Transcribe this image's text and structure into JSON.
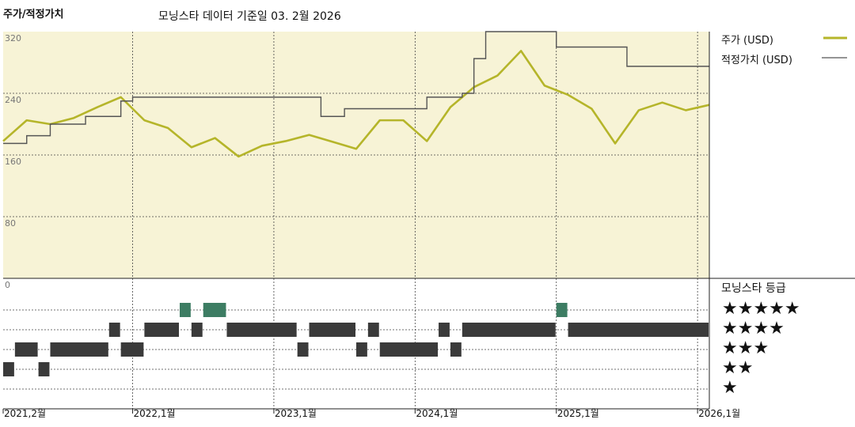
{
  "header": {
    "title": "주가/적정가치",
    "subtitle": "모닝스타 데이터 기준일 03. 2월 2026"
  },
  "legend": {
    "price": "주가 (USD)",
    "fair_value": "적정가치 (USD)",
    "rating_title": "모닝스타 등급",
    "star_rows": [
      "★★★★★",
      "★★★★",
      "★★★",
      "★★",
      "★"
    ]
  },
  "colors": {
    "plot_bg": "#f7f3d6",
    "price": "#b5b52a",
    "fair_value": "#555555",
    "rating_high": "#3d7d63",
    "rating": "#3a3a3a",
    "grid": "#444444"
  },
  "chart_data": [
    {
      "type": "line",
      "title": "주가/적정가치",
      "x_tick_labels": [
        "2021,2월",
        "2022,1월",
        "2023,1월",
        "2024,1월",
        "2025,1월",
        "2026,1월"
      ],
      "x_range": [
        "2021-02",
        "2026-02"
      ],
      "y_ticks": [
        0,
        80,
        160,
        240,
        320
      ],
      "ylim": [
        0,
        320
      ],
      "grid": true,
      "legend_position": "right",
      "series": [
        {
          "name": "주가 (USD)",
          "x": [
            "2021-02",
            "2021-04",
            "2021-06",
            "2021-08",
            "2021-10",
            "2021-12",
            "2022-02",
            "2022-04",
            "2022-06",
            "2022-08",
            "2022-10",
            "2022-12",
            "2023-02",
            "2023-04",
            "2023-06",
            "2023-08",
            "2023-10",
            "2023-12",
            "2024-02",
            "2024-04",
            "2024-06",
            "2024-08",
            "2024-10",
            "2024-12",
            "2025-02",
            "2025-04",
            "2025-06",
            "2025-08",
            "2025-10",
            "2025-12",
            "2026-02"
          ],
          "values": [
            178,
            205,
            200,
            208,
            222,
            235,
            205,
            195,
            170,
            182,
            158,
            172,
            178,
            186,
            177,
            168,
            205,
            205,
            178,
            222,
            248,
            263,
            295,
            250,
            238,
            220,
            175,
            218,
            228,
            218,
            225
          ]
        },
        {
          "name": "적정가치 (USD)",
          "x": [
            "2021-02",
            "2021-04",
            "2021-06",
            "2021-09",
            "2021-12",
            "2022-01",
            "2022-03",
            "2023-01",
            "2023-05",
            "2023-07",
            "2024-02",
            "2024-05",
            "2024-06",
            "2024-07",
            "2024-09",
            "2025-01",
            "2025-05",
            "2025-07",
            "2025-12",
            "2026-02"
          ],
          "values": [
            175,
            185,
            200,
            210,
            230,
            235,
            235,
            235,
            210,
            220,
            235,
            240,
            285,
            320,
            320,
            300,
            300,
            275,
            275,
            275
          ]
        }
      ]
    },
    {
      "type": "rating_timeline",
      "title": "모닝스타 등급",
      "levels": [
        5,
        4,
        3,
        2,
        1
      ],
      "periods": [
        {
          "start": "2021-02",
          "end": "2021-03",
          "stars": 2
        },
        {
          "start": "2021-03",
          "end": "2021-05",
          "stars": 3
        },
        {
          "start": "2021-05",
          "end": "2021-06",
          "stars": 2
        },
        {
          "start": "2021-06",
          "end": "2021-11",
          "stars": 3
        },
        {
          "start": "2021-11",
          "end": "2021-12",
          "stars": 4
        },
        {
          "start": "2021-12",
          "end": "2022-02",
          "stars": 3
        },
        {
          "start": "2022-02",
          "end": "2022-05",
          "stars": 4
        },
        {
          "start": "2022-05",
          "end": "2022-06",
          "stars": 5
        },
        {
          "start": "2022-06",
          "end": "2022-07",
          "stars": 4
        },
        {
          "start": "2022-07",
          "end": "2022-09",
          "stars": 5
        },
        {
          "start": "2022-09",
          "end": "2023-03",
          "stars": 4
        },
        {
          "start": "2023-03",
          "end": "2023-04",
          "stars": 3
        },
        {
          "start": "2023-04",
          "end": "2023-08",
          "stars": 4
        },
        {
          "start": "2023-08",
          "end": "2023-09",
          "stars": 3
        },
        {
          "start": "2023-09",
          "end": "2023-10",
          "stars": 4
        },
        {
          "start": "2023-10",
          "end": "2024-03",
          "stars": 3
        },
        {
          "start": "2024-03",
          "end": "2024-04",
          "stars": 4
        },
        {
          "start": "2024-04",
          "end": "2024-05",
          "stars": 3
        },
        {
          "start": "2024-05",
          "end": "2025-01",
          "stars": 4
        },
        {
          "start": "2025-01",
          "end": "2025-02",
          "stars": 5
        },
        {
          "start": "2025-02",
          "end": "2026-02",
          "stars": 4
        }
      ]
    }
  ]
}
